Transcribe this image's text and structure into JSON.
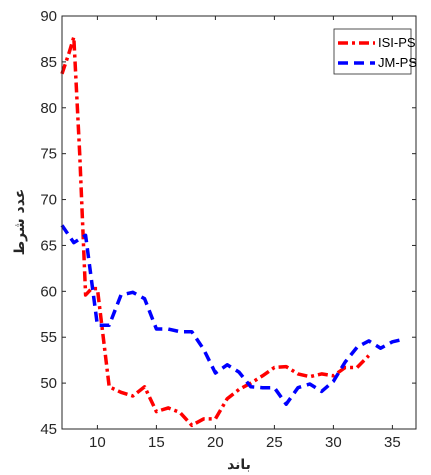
{
  "chart_data": {
    "type": "line",
    "xlabel": "باند",
    "ylabel": "عدد شرط",
    "xlim": [
      7,
      37
    ],
    "ylim": [
      45,
      90
    ],
    "xticks": [
      10,
      15,
      20,
      25,
      30,
      35
    ],
    "yticks": [
      45,
      50,
      55,
      60,
      65,
      70,
      75,
      80,
      85,
      90
    ],
    "legend_position": "top-right",
    "grid": false,
    "series": [
      {
        "name": "ISI-PS",
        "color": "#ff0000",
        "style": "dash-dot",
        "x": [
          7,
          7.6,
          8,
          8.5,
          9,
          9.5,
          10,
          11,
          12,
          13,
          14,
          15,
          16,
          17,
          18,
          19,
          20,
          21,
          22,
          23,
          24,
          25,
          26,
          27,
          28,
          29,
          30,
          31,
          32,
          33
        ],
        "y": [
          83.7,
          86,
          87.7,
          75,
          59.6,
          60.3,
          60.3,
          49.6,
          49,
          48.6,
          49.6,
          46.9,
          47.3,
          46.8,
          45.4,
          46.1,
          46.1,
          48.3,
          49.3,
          50,
          50.8,
          51.7,
          51.8,
          51,
          50.7,
          51,
          50.8,
          51.7,
          51.7,
          53
        ]
      },
      {
        "name": "JM-PS",
        "color": "#0000ff",
        "style": "dash",
        "x": [
          7,
          8,
          9,
          10,
          11,
          12,
          13,
          14,
          15,
          16,
          17,
          18,
          19,
          20,
          21,
          22,
          23,
          24,
          25,
          26,
          27,
          28,
          29,
          30,
          31,
          32,
          33,
          34,
          35,
          36
        ],
        "y": [
          67.2,
          65.3,
          66.1,
          56.3,
          56.3,
          59.6,
          59.9,
          59.2,
          55.9,
          55.9,
          55.6,
          55.6,
          53.7,
          51.1,
          52,
          51.2,
          49.6,
          49.5,
          49.5,
          47.7,
          49.5,
          49.9,
          49.1,
          50.2,
          52.3,
          53.9,
          54.6,
          53.8,
          54.5,
          54.8
        ]
      }
    ]
  }
}
